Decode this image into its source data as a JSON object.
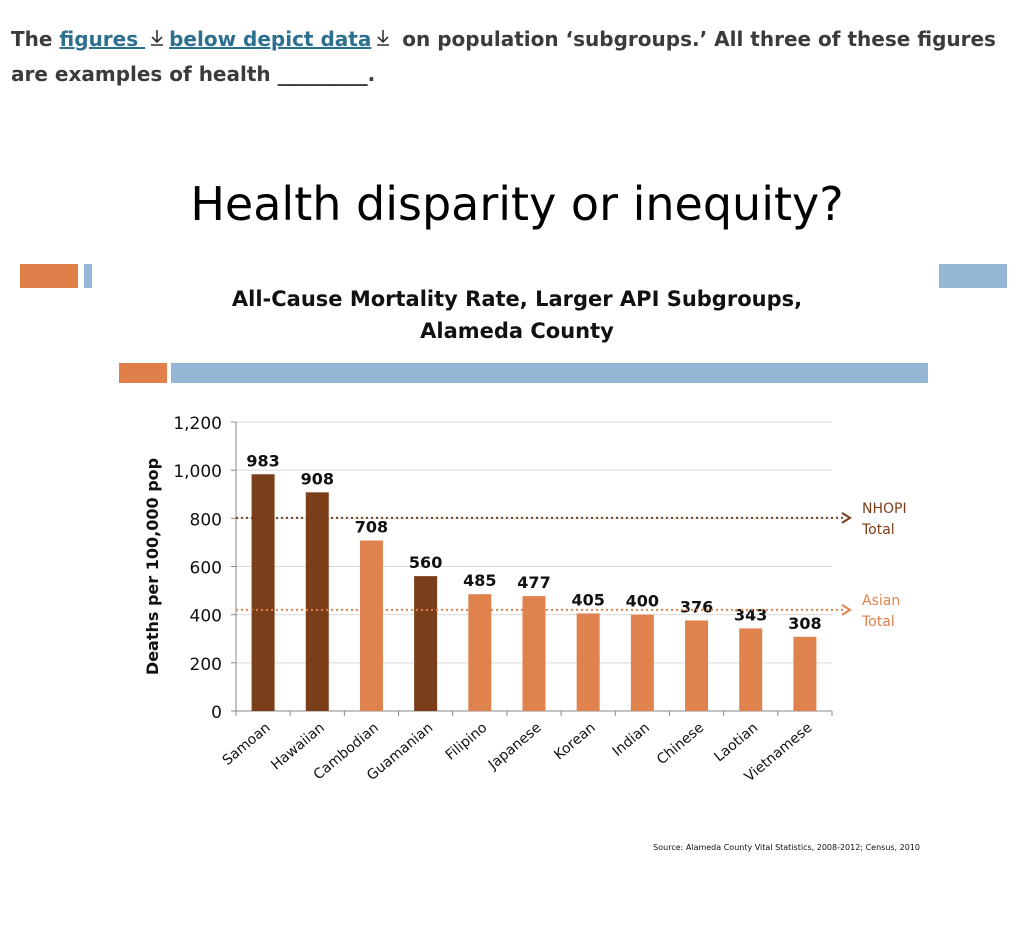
{
  "question": {
    "part1": "The ",
    "link1": "figures ",
    "link2": "below depict data",
    "part2": " on population ‘subgroups.’  All three of these figures are examples of health _________.",
    "download_icon": "download-arrow-icon"
  },
  "slide": {
    "heading": "Health disparity or inequity?",
    "colors": {
      "accent_orange": "#e07f49",
      "accent_blue": "#95b6d4"
    }
  },
  "chart_data": {
    "type": "bar",
    "title_line1": "All-Cause Mortality Rate, Larger API Subgroups,",
    "title_line2": "Alameda County",
    "ylabel": "Deaths per 100,000 pop",
    "xlabel": "",
    "ylim": [
      0,
      1200
    ],
    "yticks": [
      0,
      200,
      400,
      600,
      800,
      1000,
      1200
    ],
    "ytick_labels": [
      "0",
      "200",
      "400",
      "600",
      "800",
      "1,000",
      "1,200"
    ],
    "categories": [
      "Samoan",
      "Hawaiian",
      "Cambodian",
      "Guamanian",
      "Filipino",
      "Japanese",
      "Korean",
      "Indian",
      "Chinese",
      "Laotian",
      "Vietnamese"
    ],
    "values": [
      983,
      908,
      708,
      560,
      485,
      477,
      405,
      400,
      376,
      343,
      308
    ],
    "value_labels": [
      "983",
      "908",
      "708",
      "560",
      "485",
      "477",
      "405",
      "400",
      "376",
      "343",
      "308"
    ],
    "bar_groups": [
      "NHOPI",
      "NHOPI",
      "Asian",
      "NHOPI",
      "Asian",
      "Asian",
      "Asian",
      "Asian",
      "Asian",
      "Asian",
      "Asian"
    ],
    "group_colors": {
      "NHOPI": "#7b3e1a",
      "Asian": "#e0824e"
    },
    "reference_lines": [
      {
        "value": 802,
        "label_line1": "NHOPI",
        "label_line2": "Total",
        "color": "#7b3e1a"
      },
      {
        "value": 420,
        "label_line1": "Asian",
        "label_line2": "Total",
        "color": "#e0824e"
      }
    ],
    "grid": true,
    "source": "Source:  Alameda County Vital Statistics, 2008-2012; Census, 2010"
  }
}
